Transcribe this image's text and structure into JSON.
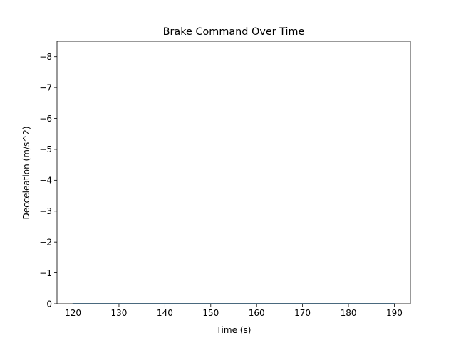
{
  "chart_data": {
    "type": "line",
    "title": "Brake Command Over Time",
    "xlabel": "Time (s)",
    "ylabel": "Decceleation (m/s^2)",
    "xlim": [
      116.5,
      193.5
    ],
    "ylim": [
      0,
      -8.5
    ],
    "y_inverted": true,
    "x_ticks": [
      120,
      130,
      140,
      150,
      160,
      170,
      180,
      190
    ],
    "x_tick_labels": [
      "120",
      "130",
      "140",
      "150",
      "160",
      "170",
      "180",
      "190"
    ],
    "y_ticks": [
      0,
      -1,
      -2,
      -3,
      -4,
      -5,
      -6,
      -7,
      -8
    ],
    "y_tick_labels": [
      "0",
      "−1",
      "−2",
      "−3",
      "−4",
      "−5",
      "−6",
      "−7",
      "−8"
    ],
    "grid": false,
    "legend": "none",
    "series": [
      {
        "x": [
          120,
          130,
          140,
          150,
          160,
          170,
          180,
          190
        ],
        "y": [
          0,
          0,
          0,
          0,
          0,
          0,
          0,
          0
        ],
        "color": "#1f77b4"
      }
    ]
  }
}
